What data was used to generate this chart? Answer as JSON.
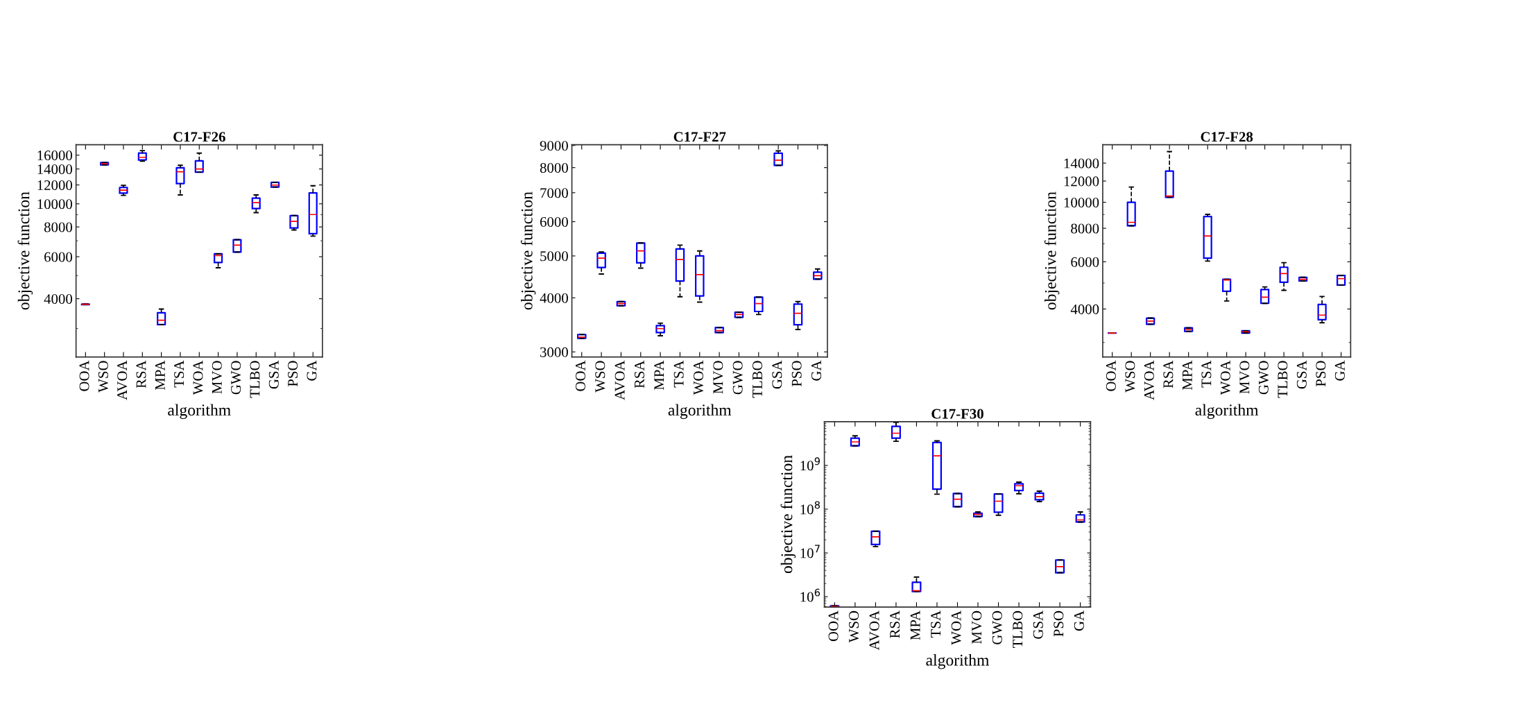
{
  "chart_data": [
    {
      "type": "box",
      "title": "C17-F26",
      "xlabel": "algorithm",
      "ylabel": "objective function",
      "log": true,
      "grid": false,
      "line_style": "dashed",
      "categories": [
        "OOA",
        "WSO",
        "AVOA",
        "RSA",
        "MPA",
        "TSA",
        "WOA",
        "MVO",
        "GWO",
        "TLBO",
        "GSA",
        "PSO",
        "GA"
      ],
      "ylim": [
        2280,
        17700
      ],
      "yticks": [
        4000,
        6000,
        8000,
        10000,
        12000,
        14000,
        16000
      ],
      "series": [
        {
          "color": "#0000ff",
          "boxes": [
            {
              "low": 3780,
              "q1": 3780,
              "median": 3790,
              "q3": 3800,
              "high": 3800
            },
            {
              "low": 14570,
              "q1": 14570,
              "median": 14730,
              "q3": 14880,
              "high": 14880
            },
            {
              "low": 10850,
              "q1": 11090,
              "median": 11410,
              "q3": 11710,
              "high": 11940
            },
            {
              "low": 15090,
              "q1": 15270,
              "median": 15670,
              "q3": 16320,
              "high": 16710
            },
            {
              "low": 3115,
              "q1": 3115,
              "median": 3250,
              "q3": 3495,
              "high": 3620
            },
            {
              "low": 10900,
              "q1": 12160,
              "median": 13630,
              "q3": 14150,
              "high": 14500
            },
            {
              "low": 13580,
              "q1": 13580,
              "median": 13990,
              "q3": 15130,
              "high": 16320
            },
            {
              "low": 5390,
              "q1": 5680,
              "median": 6070,
              "q3": 6170,
              "high": 6170
            },
            {
              "low": 6280,
              "q1": 6280,
              "median": 6710,
              "q3": 7070,
              "high": 7070
            },
            {
              "low": 9190,
              "q1": 9550,
              "median": 10110,
              "q3": 10570,
              "high": 10900
            },
            {
              "low": 11760,
              "q1": 11760,
              "median": 11990,
              "q3": 12300,
              "high": 12300
            },
            {
              "low": 7770,
              "q1": 7920,
              "median": 8440,
              "q3": 8925,
              "high": 8925
            },
            {
              "low": 7320,
              "q1": 7500,
              "median": 9020,
              "q3": 11110,
              "high": 11900
            }
          ]
        }
      ]
    },
    {
      "type": "box",
      "title": "C17-F27",
      "xlabel": "algorithm",
      "ylabel": "objective function",
      "log": true,
      "grid": false,
      "line_style": "dashed",
      "categories": [
        "OOA",
        "WSO",
        "AVOA",
        "RSA",
        "MPA",
        "TSA",
        "WOA",
        "MVO",
        "GWO",
        "TLBO",
        "GSA",
        "PSO",
        "GA"
      ],
      "ylim": [
        2920,
        9040
      ],
      "yticks": [
        3000,
        4000,
        5000,
        6000,
        7000,
        8000,
        9000
      ],
      "series": [
        {
          "color": "#0000ff",
          "boxes": [
            {
              "low": 3225,
              "q1": 3225,
              "median": 3245,
              "q3": 3290,
              "high": 3290
            },
            {
              "low": 4540,
              "q1": 4700,
              "median": 4940,
              "q3": 5075,
              "high": 5105
            },
            {
              "low": 3835,
              "q1": 3835,
              "median": 3880,
              "q3": 3920,
              "high": 3920
            },
            {
              "low": 4685,
              "q1": 4820,
              "median": 5135,
              "q3": 5355,
              "high": 5355
            },
            {
              "low": 3270,
              "q1": 3325,
              "median": 3395,
              "q3": 3450,
              "high": 3495
            },
            {
              "low": 4025,
              "q1": 4375,
              "median": 4905,
              "q3": 5190,
              "high": 5295
            },
            {
              "low": 3910,
              "q1": 4040,
              "median": 4525,
              "q3": 5000,
              "high": 5135
            },
            {
              "low": 3325,
              "q1": 3325,
              "median": 3360,
              "q3": 3415,
              "high": 3415
            },
            {
              "low": 3605,
              "q1": 3605,
              "median": 3660,
              "q3": 3705,
              "high": 3705
            },
            {
              "low": 3660,
              "q1": 3720,
              "median": 3880,
              "q3": 4015,
              "high": 4015
            },
            {
              "low": 8100,
              "q1": 8100,
              "median": 8325,
              "q3": 8640,
              "high": 8745
            },
            {
              "low": 3380,
              "q1": 3465,
              "median": 3685,
              "q3": 3870,
              "high": 3920
            },
            {
              "low": 4420,
              "q1": 4420,
              "median": 4500,
              "q3": 4585,
              "high": 4665
            }
          ]
        }
      ]
    },
    {
      "type": "box",
      "title": "C17-F28",
      "xlabel": "algorithm",
      "ylabel": "objective function",
      "log": true,
      "grid": false,
      "line_style": "dashed",
      "categories": [
        "OOA",
        "WSO",
        "AVOA",
        "RSA",
        "MPA",
        "TSA",
        "WOA",
        "MVO",
        "GWO",
        "TLBO",
        "GSA",
        "PSO",
        "GA"
      ],
      "ylim": [
        2650,
        16400
      ],
      "yticks": [
        4000,
        6000,
        8000,
        10000,
        12000,
        14000
      ],
      "series": [
        {
          "color": "#0000ff",
          "boxes": [
            {
              "low": 3255,
              "q1": 3255,
              "median": 3255,
              "q3": 3255,
              "high": 3255
            },
            {
              "low": 8175,
              "q1": 8175,
              "median": 8420,
              "q3": 10000,
              "high": 11400
            },
            {
              "low": 3510,
              "q1": 3510,
              "median": 3605,
              "q3": 3700,
              "high": 3700
            },
            {
              "low": 10440,
              "q1": 10440,
              "median": 10545,
              "q3": 13080,
              "high": 15450
            },
            {
              "low": 3300,
              "q1": 3300,
              "median": 3355,
              "q3": 3400,
              "high": 3400
            },
            {
              "low": 6035,
              "q1": 6190,
              "median": 7490,
              "q3": 8845,
              "high": 9015
            },
            {
              "low": 4285,
              "q1": 4660,
              "median": 5130,
              "q3": 5160,
              "high": 5160
            },
            {
              "low": 3255,
              "q1": 3255,
              "median": 3290,
              "q3": 3315,
              "high": 3315
            },
            {
              "low": 4200,
              "q1": 4200,
              "median": 4430,
              "q3": 4725,
              "high": 4835
            },
            {
              "low": 4695,
              "q1": 5030,
              "median": 5420,
              "q3": 5725,
              "high": 5955
            },
            {
              "low": 5090,
              "q1": 5090,
              "median": 5160,
              "q3": 5250,
              "high": 5250
            },
            {
              "low": 3555,
              "q1": 3650,
              "median": 3795,
              "q3": 4160,
              "high": 4455
            },
            {
              "low": 4915,
              "q1": 4915,
              "median": 5190,
              "q3": 5335,
              "high": 5335
            }
          ]
        }
      ]
    },
    {
      "type": "box",
      "title": "C17-F30",
      "xlabel": "algorithm",
      "ylabel": "objective function",
      "log": true,
      "grid": false,
      "line_style": "dashed",
      "categories": [
        "OOA",
        "WSO",
        "AVOA",
        "RSA",
        "MPA",
        "TSA",
        "WOA",
        "MVO",
        "GWO",
        "TLBO",
        "GSA",
        "PSO",
        "GA"
      ],
      "ylim": [
        580000,
        10000000000
      ],
      "yticks": [
        {
          "value": 1000000,
          "label": "10$^{6}$"
        },
        {
          "value": 10000000,
          "label": "10$^{7}$"
        },
        {
          "value": 100000000,
          "label": "10$^{8}$"
        },
        {
          "value": 1000000000,
          "label": "10$^{9}$"
        }
      ],
      "series": [
        {
          "color": "#0000ff",
          "boxes": [
            {
              "low": 590000,
              "q1": 590000,
              "median": 600000,
              "q3": 620000,
              "high": 620000
            },
            {
              "low": 2800000000,
              "q1": 2800000000,
              "median": 3450000000,
              "q3": 4180000000,
              "high": 4740000000
            },
            {
              "low": 14000000,
              "q1": 15600000,
              "median": 23300000,
              "q3": 31300000,
              "high": 31300000
            },
            {
              "low": 3560000000,
              "q1": 4180000000,
              "median": 5440000000,
              "q3": 7800000000,
              "high": 9640000000
            },
            {
              "low": 1320000,
              "q1": 1320000,
              "median": 1370000,
              "q3": 2130000,
              "high": 2810000
            },
            {
              "low": 220000000,
              "q1": 287000000,
              "median": 1650000000,
              "q3": 3340000000,
              "high": 3640000000
            },
            {
              "low": 114000000,
              "q1": 114000000,
              "median": 169000000,
              "q3": 228000000,
              "high": 228000000
            },
            {
              "low": 68000000,
              "q1": 68000000,
              "median": 76400000,
              "q3": 80500000,
              "high": 86700000
            },
            {
              "low": 72400000,
              "q1": 85000000,
              "median": 152000000,
              "q3": 222000000,
              "high": 222000000
            },
            {
              "low": 225000000,
              "q1": 266000000,
              "median": 343000000,
              "q3": 382000000,
              "high": 415000000
            },
            {
              "low": 149000000,
              "q1": 164000000,
              "median": 194000000,
              "q3": 232000000,
              "high": 258000000
            },
            {
              "low": 3540000,
              "q1": 3540000,
              "median": 4860000,
              "q3": 6900000,
              "high": 6900000
            },
            {
              "low": 51000000,
              "q1": 51000000,
              "median": 56800000,
              "q3": 74000000,
              "high": 86700000
            }
          ]
        }
      ]
    }
  ]
}
